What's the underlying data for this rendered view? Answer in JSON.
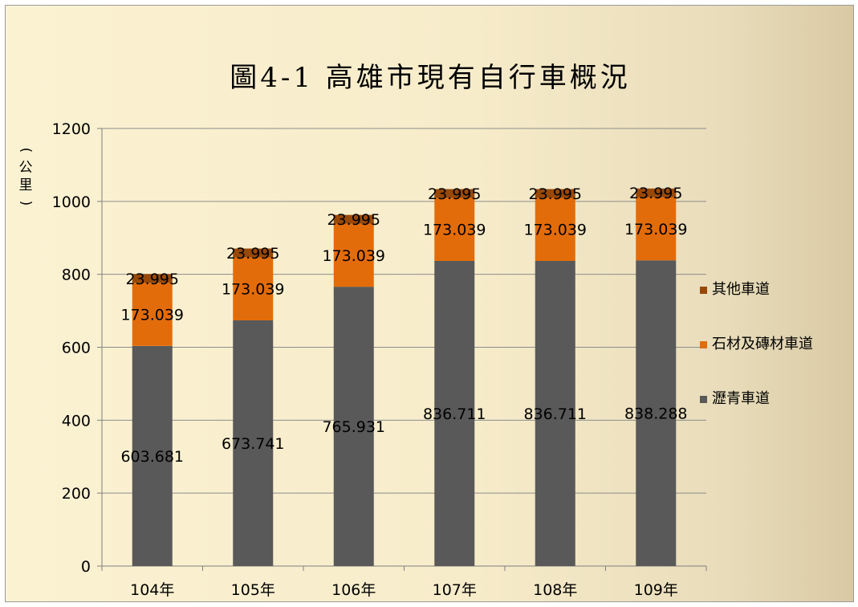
{
  "chart_data": {
    "type": "bar",
    "stacked": true,
    "title": "圖4-1 高雄市現有自行車概況",
    "ylabel": "(公里)",
    "xlabel": "",
    "ylim": [
      0,
      1200
    ],
    "yticks": [
      0,
      200,
      400,
      600,
      800,
      1000,
      1200
    ],
    "grid": true,
    "legend_position": "right",
    "categories": [
      "104年",
      "105年",
      "106年",
      "107年",
      "108年",
      "109年"
    ],
    "series": [
      {
        "name": "瀝青車道",
        "color": "#595959",
        "values": [
          603.681,
          673.741,
          765.931,
          836.711,
          836.711,
          838.288
        ],
        "labels": [
          "603.681",
          "673.741",
          "765.931",
          "836.711",
          "836.711",
          "838.288"
        ]
      },
      {
        "name": "石材及磚材車道",
        "color": "#e36c0a",
        "values": [
          173.039,
          173.039,
          173.039,
          173.039,
          173.039,
          173.039
        ],
        "labels": [
          "173.039",
          "173.039",
          "173.039",
          "173.039",
          "173.039",
          "173.039"
        ]
      },
      {
        "name": "其他車道",
        "color": "#984807",
        "values": [
          23.995,
          23.995,
          23.995,
          23.995,
          23.995,
          23.995
        ],
        "labels": [
          "23.995",
          "23.995",
          "23.995",
          "23.995",
          "23.995",
          "23.995"
        ]
      }
    ]
  }
}
